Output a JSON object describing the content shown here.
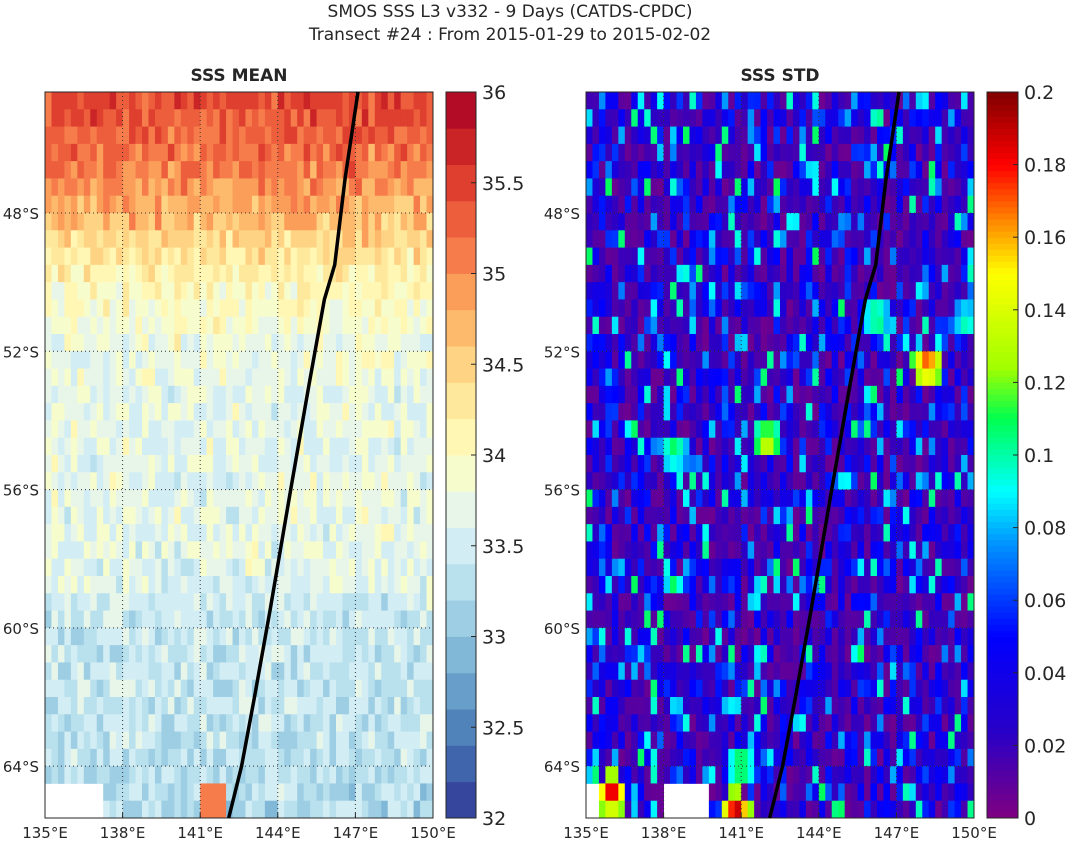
{
  "figure": {
    "title_line1": "SMOS SSS L3 v332 - 9 Days (CATDS-CPDC)",
    "title_line2": "Transect #24 : From 2015-01-29 to 2015-02-02"
  },
  "chart_data": [
    {
      "type": "heatmap",
      "title": "SSS MEAN",
      "xlim": [
        135,
        150
      ],
      "ylim": [
        -65.5,
        -44.5
      ],
      "x_ticks": [
        135,
        138,
        141,
        144,
        147,
        150
      ],
      "x_tick_labels": [
        "135°E",
        "138°E",
        "141°E",
        "144°E",
        "147°E",
        "150°E"
      ],
      "y_ticks": [
        -48,
        -52,
        -56,
        -60,
        -64
      ],
      "y_tick_labels": [
        "48°S",
        "52°S",
        "56°S",
        "60°S",
        "64°S"
      ],
      "grid": true,
      "colorbar": {
        "range": [
          32,
          36
        ],
        "ticks": [
          32,
          32.5,
          33,
          33.5,
          34,
          34.5,
          35,
          35.5,
          36
        ],
        "tick_labels": [
          "32",
          "32.5",
          "33",
          "33.5",
          "34",
          "34.5",
          "35",
          "35.5",
          "36"
        ],
        "palette": "RdYlBu_r",
        "levels": 20
      },
      "field_rows": [
        {
          "lat": -45,
          "value": 35.4
        },
        {
          "lat": -47,
          "value": 35.0
        },
        {
          "lat": -48.5,
          "value": 34.6
        },
        {
          "lat": -49.5,
          "value": 34.2
        },
        {
          "lat": -51,
          "value": 33.9
        },
        {
          "lat": -53,
          "value": 33.7
        },
        {
          "lat": -56,
          "value": 33.7
        },
        {
          "lat": -58,
          "value": 33.7
        },
        {
          "lat": -60,
          "value": 33.4
        },
        {
          "lat": -62,
          "value": 33.4
        },
        {
          "lat": -64,
          "value": 33.3
        }
      ],
      "transect": [
        {
          "lon": 147.1,
          "lat": -44.5
        },
        {
          "lon": 146.6,
          "lat": -47.0
        },
        {
          "lon": 146.2,
          "lat": -49.5
        },
        {
          "lon": 145.8,
          "lat": -50.5
        },
        {
          "lon": 145.2,
          "lat": -53.0
        },
        {
          "lon": 144.5,
          "lat": -56.0
        },
        {
          "lon": 143.7,
          "lat": -59.5
        },
        {
          "lon": 143.1,
          "lat": -62.0
        },
        {
          "lon": 142.6,
          "lat": -64.0
        },
        {
          "lon": 142.1,
          "lat": -65.5
        }
      ]
    },
    {
      "type": "heatmap",
      "title": "SSS STD",
      "xlim": [
        135,
        150
      ],
      "ylim": [
        -65.5,
        -44.5
      ],
      "x_ticks": [
        135,
        138,
        141,
        144,
        147,
        150
      ],
      "x_tick_labels": [
        "135°E",
        "138°E",
        "141°E",
        "144°E",
        "147°E",
        "150°E"
      ],
      "y_ticks": [
        -48,
        -52,
        -56,
        -60,
        -64
      ],
      "y_tick_labels": [
        "48°S",
        "52°S",
        "56°S",
        "60°S",
        "64°S"
      ],
      "grid": true,
      "colorbar": {
        "range": [
          0,
          0.2
        ],
        "ticks": [
          0,
          0.02,
          0.04,
          0.06,
          0.08,
          0.1,
          0.12,
          0.14,
          0.16,
          0.18,
          0.2
        ],
        "tick_labels": [
          "0",
          "0.02",
          "0.04",
          "0.06",
          "0.08",
          "0.1",
          "0.12",
          "0.14",
          "0.16",
          "0.18",
          "0.2"
        ],
        "palette": "jet"
      },
      "hotspots": [
        {
          "lon": 148.2,
          "lat": -52.4,
          "value": 0.19
        },
        {
          "lon": 142.0,
          "lat": -54.6,
          "value": 0.15
        },
        {
          "lon": 141.0,
          "lat": -64.0,
          "value": 0.13
        },
        {
          "lon": 146.2,
          "lat": -51.0,
          "value": 0.12
        },
        {
          "lon": 149.7,
          "lat": -51.1,
          "value": 0.11
        },
        {
          "lon": 138.4,
          "lat": -54.9,
          "value": 0.12
        },
        {
          "lon": 136.0,
          "lat": -64.8,
          "value": 0.2
        },
        {
          "lon": 140.8,
          "lat": -65.3,
          "value": 0.2
        }
      ],
      "transect": [
        {
          "lon": 147.1,
          "lat": -44.5
        },
        {
          "lon": 146.6,
          "lat": -47.0
        },
        {
          "lon": 146.2,
          "lat": -49.5
        },
        {
          "lon": 145.8,
          "lat": -50.5
        },
        {
          "lon": 145.2,
          "lat": -53.0
        },
        {
          "lon": 144.5,
          "lat": -56.0
        },
        {
          "lon": 143.7,
          "lat": -59.5
        },
        {
          "lon": 143.1,
          "lat": -62.0
        },
        {
          "lon": 142.6,
          "lat": -64.0
        },
        {
          "lon": 142.1,
          "lat": -65.5
        }
      ]
    }
  ]
}
